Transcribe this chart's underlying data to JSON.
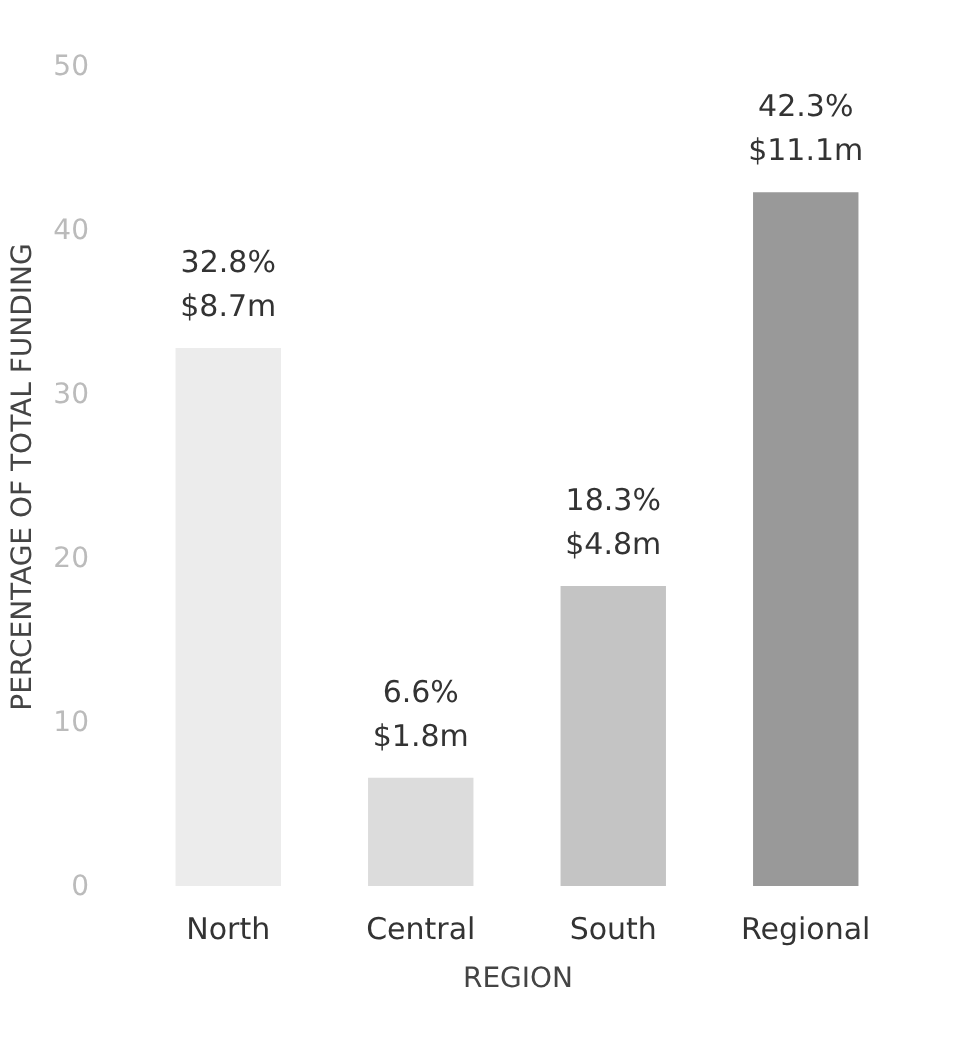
{
  "chart_data": {
    "type": "bar",
    "xlabel": "REGION",
    "ylabel": "PERCENTAGE OF TOTAL FUNDING",
    "categories": [
      "North",
      "Central",
      "South",
      "Regional"
    ],
    "values": [
      32.8,
      6.6,
      18.3,
      42.3
    ],
    "colors": [
      "#ececec",
      "#dcdcdc",
      "#c4c4c4",
      "#999999"
    ],
    "value_labels": [
      "32.8%\n$8.7m",
      "6.6%\n$1.8m",
      "18.3%\n$4.8m",
      "42.3%\n$11.1m"
    ],
    "ylim": [
      0,
      50
    ],
    "yticks": [
      0,
      10,
      20,
      30,
      40,
      50
    ],
    "grid": false
  }
}
